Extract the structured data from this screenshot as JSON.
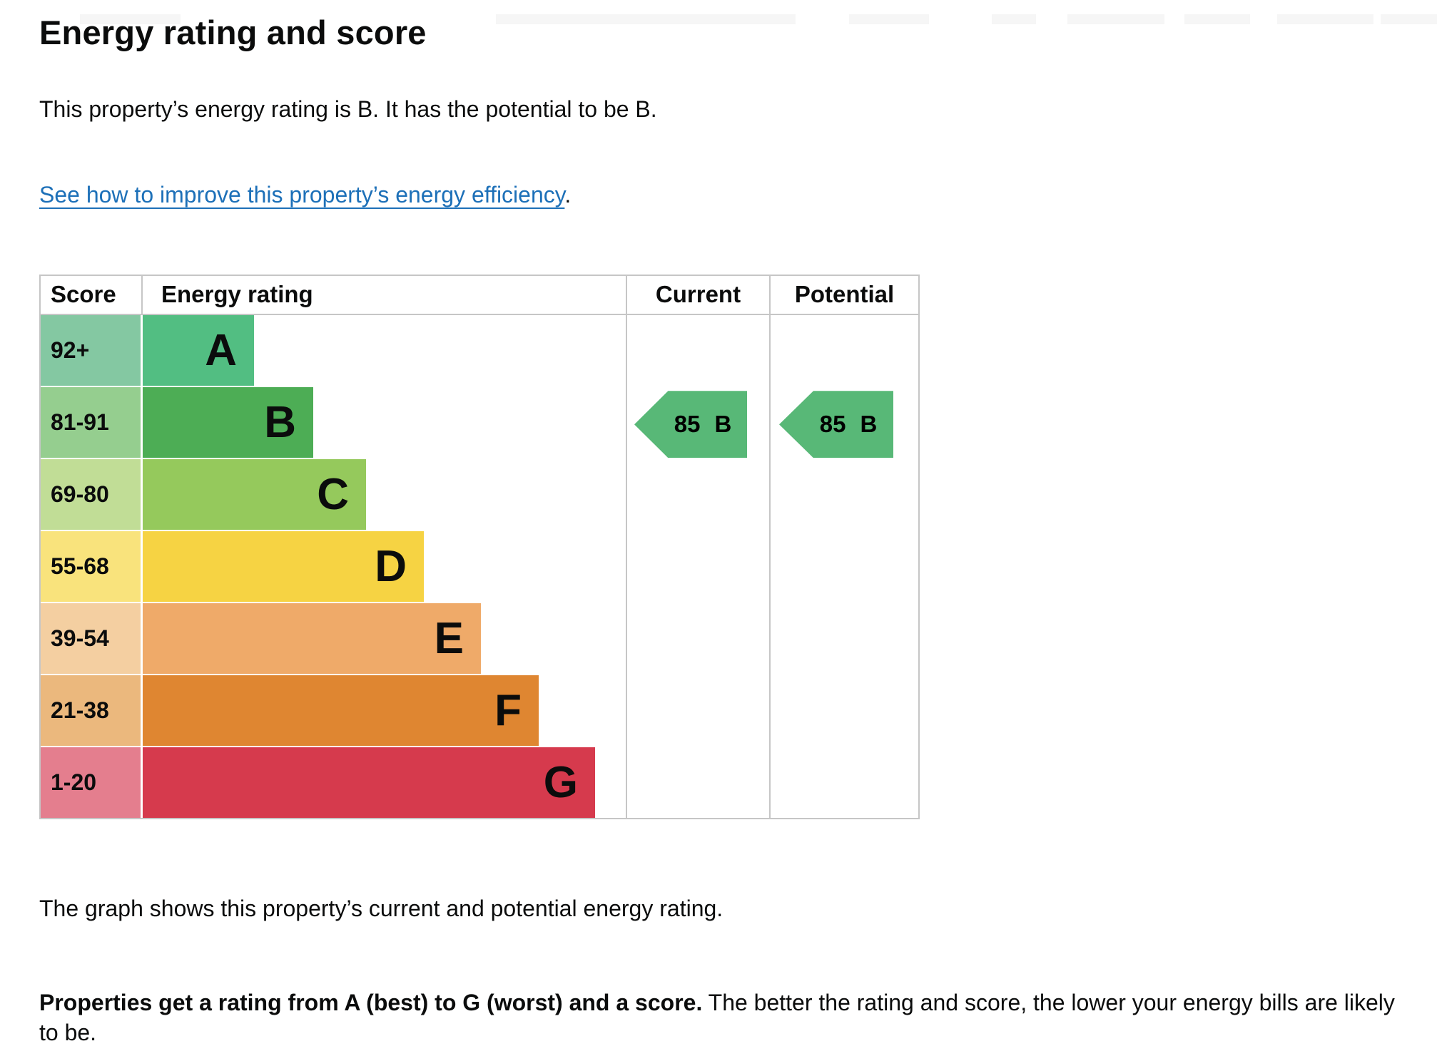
{
  "page": {
    "heading": "Energy rating and score",
    "intro": "This property’s energy rating is B. It has the potential to be B.",
    "improve_link": "See how to improve this property’s energy efficiency",
    "improve_link_suffix": ".",
    "graph_caption": "The graph shows this property’s current and potential energy rating.",
    "explain_bold": "Properties get a rating from A (best) to G (worst) and a score.",
    "explain_rest": " The better the rating and score, the lower your energy bills are likely to be."
  },
  "colors": {
    "text": "#0b0c0c",
    "link": "#1d70b8",
    "grid": "#c6c6c6",
    "arrow": "#58b877",
    "topbar": "#f6f6f6"
  },
  "chart_data": {
    "type": "bar",
    "title": "Energy rating and score (EPC graph)",
    "columns": {
      "score": "Score",
      "rating": "Energy rating",
      "current": "Current",
      "potential": "Potential"
    },
    "bands": [
      {
        "letter": "A",
        "range": "92+",
        "width_pct": 23.2,
        "bar_color": "#52be82",
        "cell_color": "#84c8a2"
      },
      {
        "letter": "B",
        "range": "81-91",
        "width_pct": 35.5,
        "bar_color": "#4dad55",
        "cell_color": "#95ce8f"
      },
      {
        "letter": "C",
        "range": "69-80",
        "width_pct": 46.5,
        "bar_color": "#95c95c",
        "cell_color": "#c1dd96"
      },
      {
        "letter": "D",
        "range": "55-68",
        "width_pct": 58.5,
        "bar_color": "#f6d343",
        "cell_color": "#f9e37c"
      },
      {
        "letter": "E",
        "range": "39-54",
        "width_pct": 70.3,
        "bar_color": "#efaa69",
        "cell_color": "#f4cfa1"
      },
      {
        "letter": "F",
        "range": "21-38",
        "width_pct": 82.3,
        "bar_color": "#df8631",
        "cell_color": "#ebb87d"
      },
      {
        "letter": "G",
        "range": "1-20",
        "width_pct": 94.0,
        "bar_color": "#d63a4d",
        "cell_color": "#e47e8e"
      }
    ],
    "pointers": [
      {
        "column": "current",
        "score": "85",
        "band": "B",
        "band_index": 1
      },
      {
        "column": "potential",
        "score": "85",
        "band": "B",
        "band_index": 1
      }
    ],
    "legend_position": "none",
    "grid": "column separators only"
  }
}
